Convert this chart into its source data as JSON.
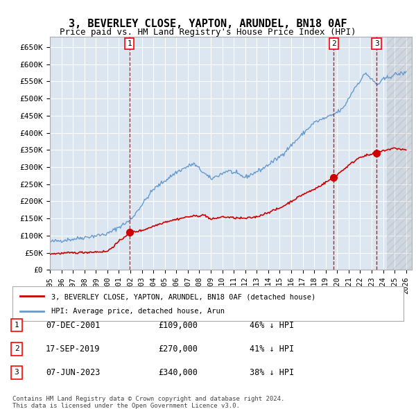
{
  "title": "3, BEVERLEY CLOSE, YAPTON, ARUNDEL, BN18 0AF",
  "subtitle": "Price paid vs. HM Land Registry's House Price Index (HPI)",
  "xlabel": "",
  "ylabel": "",
  "ylim": [
    0,
    680000
  ],
  "yticks": [
    0,
    50000,
    100000,
    150000,
    200000,
    250000,
    300000,
    350000,
    400000,
    450000,
    500000,
    550000,
    600000,
    650000
  ],
  "ytick_labels": [
    "£0",
    "£50K",
    "£100K",
    "£150K",
    "£200K",
    "£250K",
    "£300K",
    "£350K",
    "£400K",
    "£450K",
    "£500K",
    "£550K",
    "£600K",
    "£650K"
  ],
  "xlim_start": 1995.0,
  "xlim_end": 2026.5,
  "xticks": [
    1995,
    1996,
    1997,
    1998,
    1999,
    2000,
    2001,
    2002,
    2003,
    2004,
    2005,
    2006,
    2007,
    2008,
    2009,
    2010,
    2011,
    2012,
    2013,
    2014,
    2015,
    2016,
    2017,
    2018,
    2019,
    2020,
    2021,
    2022,
    2023,
    2024,
    2025,
    2026
  ],
  "background_color": "#dce6f1",
  "plot_bg_color": "#dce6f1",
  "hpi_color": "#6699cc",
  "price_color": "#cc0000",
  "sale_marker_color": "#cc0000",
  "vline_color": "#cc0000",
  "legend_line_red": "#cc0000",
  "legend_line_blue": "#6699cc",
  "sales": [
    {
      "date_year": 2001.92,
      "price": 109000,
      "label": "1",
      "date_str": "07-DEC-2001",
      "price_str": "£109,000",
      "hpi_str": "46% ↓ HPI"
    },
    {
      "date_year": 2019.71,
      "price": 270000,
      "label": "2",
      "date_str": "17-SEP-2019",
      "price_str": "£270,000",
      "hpi_str": "41% ↓ HPI"
    },
    {
      "date_year": 2023.43,
      "price": 340000,
      "label": "3",
      "date_str": "07-JUN-2023",
      "price_str": "£340,000",
      "hpi_str": "38% ↓ HPI"
    }
  ],
  "footer_line1": "Contains HM Land Registry data © Crown copyright and database right 2024.",
  "footer_line2": "This data is licensed under the Open Government Licence v3.0.",
  "legend_label_red": "3, BEVERLEY CLOSE, YAPTON, ARUNDEL, BN18 0AF (detached house)",
  "legend_label_blue": "HPI: Average price, detached house, Arun"
}
